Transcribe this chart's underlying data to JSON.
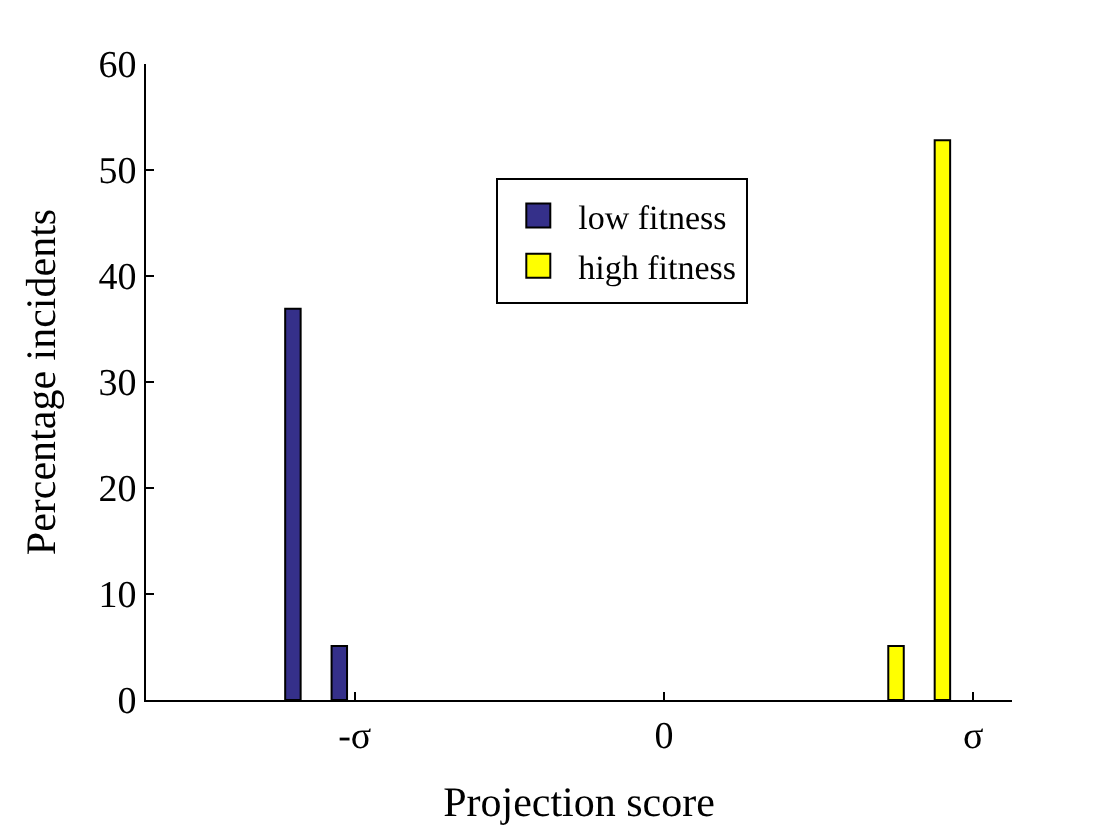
{
  "chart_data": {
    "type": "bar",
    "xlabel": "Projection score",
    "ylabel": "Percentage incidents",
    "categories": [
      null,
      null,
      null,
      null,
      null,
      null,
      null,
      null,
      null,
      null,
      null,
      null,
      null,
      "-σ",
      null,
      null,
      null,
      null,
      null,
      null,
      null,
      null,
      null,
      null,
      null,
      null,
      null,
      null,
      null,
      null,
      null,
      null,
      null,
      "0",
      null,
      null,
      null,
      null,
      null,
      null,
      null,
      null,
      null,
      null,
      null,
      null,
      null,
      null,
      null,
      null,
      null,
      null,
      null,
      "σ",
      null,
      null
    ],
    "series": [
      {
        "name": "low fitness",
        "color": "#35308a",
        "values": [
          null,
          null,
          null,
          null,
          null,
          null,
          null,
          null,
          null,
          36.9,
          null,
          null,
          5.1,
          null,
          null,
          null,
          null,
          null,
          null,
          null,
          null,
          null,
          null,
          null,
          null,
          null,
          null,
          null,
          null,
          null,
          null,
          null,
          null,
          null,
          null,
          null,
          null,
          null,
          null,
          null,
          null,
          null,
          null,
          null,
          null,
          null,
          null,
          null,
          null,
          null,
          null,
          null,
          null,
          null,
          null,
          null
        ]
      },
      {
        "name": "high fitness",
        "color": "#ffff00",
        "values": [
          null,
          null,
          null,
          null,
          null,
          null,
          null,
          null,
          null,
          null,
          null,
          null,
          null,
          null,
          null,
          null,
          null,
          null,
          null,
          null,
          null,
          null,
          null,
          null,
          null,
          null,
          null,
          null,
          null,
          null,
          null,
          null,
          null,
          null,
          null,
          null,
          null,
          null,
          null,
          null,
          null,
          null,
          null,
          null,
          null,
          null,
          null,
          null,
          5.1,
          null,
          null,
          52.8,
          null,
          null,
          null,
          null
        ]
      }
    ],
    "ylim": [
      0,
      60
    ],
    "yticks": [
      0,
      10,
      20,
      30,
      40,
      50,
      60
    ],
    "legend": "top"
  }
}
